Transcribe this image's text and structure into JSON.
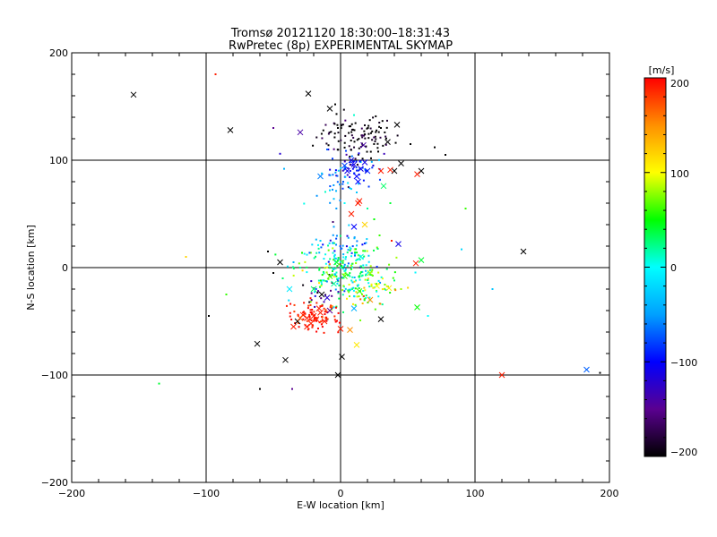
{
  "chart_data": {
    "type": "scatter",
    "title": "Tromsø 20121120 18:30:00–18:31:43",
    "subtitle": "RwPretec (8p) EXPERIMENTAL SKYMAP",
    "xlabel": "E-W location [km]",
    "ylabel": "N-S location [km]",
    "xlim": [
      -200,
      200
    ],
    "ylim": [
      -200,
      200
    ],
    "xticks": [
      "−200",
      "−100",
      "0",
      "100",
      "200"
    ],
    "yticks": [
      "−200",
      "−100",
      "0",
      "100",
      "200"
    ],
    "grid": true,
    "colorbar": {
      "label": "[m/s]",
      "range": [
        -200,
        200
      ],
      "ticks": [
        "200",
        "100",
        "0",
        "−100",
        "−200"
      ],
      "colors": [
        "#000000",
        "#5a0090",
        "#0000ff",
        "#00a0ff",
        "#00ffff",
        "#00ff00",
        "#ffff00",
        "#ff9000",
        "#ff0000"
      ]
    },
    "crosses": [
      {
        "x": -154,
        "y": 161,
        "v": -200
      },
      {
        "x": -24,
        "y": 162,
        "v": -200
      },
      {
        "x": -8,
        "y": 148,
        "v": -200
      },
      {
        "x": -82,
        "y": 128,
        "v": -200
      },
      {
        "x": -30,
        "y": 126,
        "v": -140
      },
      {
        "x": 42,
        "y": 133,
        "v": -200
      },
      {
        "x": 35,
        "y": 117,
        "v": -200
      },
      {
        "x": 17,
        "y": 114,
        "v": -140
      },
      {
        "x": 60,
        "y": 90,
        "v": -200
      },
      {
        "x": 45,
        "y": 97,
        "v": -200
      },
      {
        "x": 40,
        "y": 90,
        "v": -200
      },
      {
        "x": 8,
        "y": 100,
        "v": -110
      },
      {
        "x": 10,
        "y": 96,
        "v": -110
      },
      {
        "x": 15,
        "y": 92,
        "v": -110
      },
      {
        "x": 5,
        "y": 90,
        "v": -110
      },
      {
        "x": 12,
        "y": 85,
        "v": -100
      },
      {
        "x": 18,
        "y": 98,
        "v": -110
      },
      {
        "x": 13,
        "y": 80,
        "v": -100
      },
      {
        "x": -15,
        "y": 85,
        "v": -60
      },
      {
        "x": 3,
        "y": 95,
        "v": -80
      },
      {
        "x": 20,
        "y": 90,
        "v": -90
      },
      {
        "x": 30,
        "y": 90,
        "v": 190
      },
      {
        "x": 57,
        "y": 87,
        "v": 190
      },
      {
        "x": 37,
        "y": 91,
        "v": 190
      },
      {
        "x": 32,
        "y": 76,
        "v": 30
      },
      {
        "x": 14,
        "y": 62,
        "v": 190
      },
      {
        "x": 13,
        "y": 60,
        "v": 190
      },
      {
        "x": 8,
        "y": 50,
        "v": 190
      },
      {
        "x": 18,
        "y": 40,
        "v": 120
      },
      {
        "x": 10,
        "y": 38,
        "v": -100
      },
      {
        "x": 43,
        "y": 22,
        "v": -110
      },
      {
        "x": 60,
        "y": 7,
        "v": 40
      },
      {
        "x": 56,
        "y": 4,
        "v": 190
      },
      {
        "x": -45,
        "y": 5,
        "v": -200
      },
      {
        "x": 136,
        "y": 15,
        "v": -200
      },
      {
        "x": 27,
        "y": -17,
        "v": 100
      },
      {
        "x": 36,
        "y": -19,
        "v": 110
      },
      {
        "x": -38,
        "y": -20,
        "v": -10
      },
      {
        "x": -14,
        "y": -25,
        "v": -200
      },
      {
        "x": -10,
        "y": -28,
        "v": -120
      },
      {
        "x": 14,
        "y": -22,
        "v": 60
      },
      {
        "x": -5,
        "y": -15,
        "v": 20
      },
      {
        "x": 22,
        "y": -30,
        "v": 150
      },
      {
        "x": -8,
        "y": -40,
        "v": -150
      },
      {
        "x": 10,
        "y": -38,
        "v": -40
      },
      {
        "x": 57,
        "y": -37,
        "v": 50
      },
      {
        "x": 30,
        "y": -48,
        "v": -200
      },
      {
        "x": -32,
        "y": -50,
        "v": -200
      },
      {
        "x": -25,
        "y": -47,
        "v": 190
      },
      {
        "x": -20,
        "y": -45,
        "v": 190
      },
      {
        "x": -18,
        "y": -48,
        "v": 190
      },
      {
        "x": -15,
        "y": -42,
        "v": 190
      },
      {
        "x": -22,
        "y": -52,
        "v": 190
      },
      {
        "x": -28,
        "y": -44,
        "v": 190
      },
      {
        "x": -12,
        "y": -50,
        "v": 190
      },
      {
        "x": -25,
        "y": -55,
        "v": 190
      },
      {
        "x": -35,
        "y": -55,
        "v": 190
      },
      {
        "x": -16,
        "y": -38,
        "v": 190
      },
      {
        "x": -30,
        "y": -47,
        "v": 170
      },
      {
        "x": 0,
        "y": -57,
        "v": 190
      },
      {
        "x": 7,
        "y": -58,
        "v": 150
      },
      {
        "x": 12,
        "y": -72,
        "v": 110
      },
      {
        "x": -62,
        "y": -71,
        "v": -200
      },
      {
        "x": -41,
        "y": -86,
        "v": -200
      },
      {
        "x": 1,
        "y": -83,
        "v": -200
      },
      {
        "x": -2,
        "y": -100,
        "v": -200
      },
      {
        "x": 120,
        "y": -100,
        "v": 190
      },
      {
        "x": 183,
        "y": -95,
        "v": -70
      },
      {
        "x": -20,
        "y": -20,
        "v": 30
      },
      {
        "x": 3,
        "y": -8,
        "v": 60
      },
      {
        "x": -3,
        "y": 5,
        "v": 40
      },
      {
        "x": 15,
        "y": 10,
        "v": 10
      },
      {
        "x": 22,
        "y": -5,
        "v": 80
      },
      {
        "x": -8,
        "y": -8,
        "v": 70
      }
    ],
    "dots": [
      {
        "x": -93,
        "y": 180,
        "v": 190
      },
      {
        "x": -4,
        "y": 152,
        "v": -200
      },
      {
        "x": -3,
        "y": 143,
        "v": -200
      },
      {
        "x": 10,
        "y": 142,
        "v": 10
      },
      {
        "x": 30,
        "y": 130,
        "v": -200
      },
      {
        "x": -50,
        "y": 130,
        "v": -150
      },
      {
        "x": -45,
        "y": 106,
        "v": -120
      },
      {
        "x": -10,
        "y": 110,
        "v": -70
      },
      {
        "x": -42,
        "y": 92,
        "v": -40
      },
      {
        "x": 70,
        "y": 112,
        "v": -200
      },
      {
        "x": 78,
        "y": 105,
        "v": -200
      },
      {
        "x": 52,
        "y": 115,
        "v": -200
      },
      {
        "x": 28,
        "y": 108,
        "v": -200
      },
      {
        "x": 2,
        "y": 80,
        "v": -70
      },
      {
        "x": -8,
        "y": 72,
        "v": -20
      },
      {
        "x": -5,
        "y": 64,
        "v": -30
      },
      {
        "x": 3,
        "y": 60,
        "v": 0
      },
      {
        "x": 12,
        "y": 70,
        "v": -30
      },
      {
        "x": 20,
        "y": 55,
        "v": 20
      },
      {
        "x": 25,
        "y": 45,
        "v": 50
      },
      {
        "x": 37,
        "y": 60,
        "v": 40
      },
      {
        "x": 93,
        "y": 55,
        "v": 60
      },
      {
        "x": -5,
        "y": 38,
        "v": -50
      },
      {
        "x": -15,
        "y": 25,
        "v": -30
      },
      {
        "x": -25,
        "y": 12,
        "v": -10
      },
      {
        "x": 38,
        "y": 25,
        "v": 190
      },
      {
        "x": 29,
        "y": 30,
        "v": 60
      },
      {
        "x": -54,
        "y": 15,
        "v": -200
      },
      {
        "x": -115,
        "y": 10,
        "v": 120
      },
      {
        "x": 90,
        "y": 17,
        "v": -20
      },
      {
        "x": -50,
        "y": -5,
        "v": -200
      },
      {
        "x": -43,
        "y": -10,
        "v": 30
      },
      {
        "x": -35,
        "y": 5,
        "v": -40
      },
      {
        "x": -30,
        "y": 0,
        "v": 20
      },
      {
        "x": -85,
        "y": -25,
        "v": 60
      },
      {
        "x": -98,
        "y": -45,
        "v": -200
      },
      {
        "x": -60,
        "y": -113,
        "v": -200
      },
      {
        "x": -36,
        "y": -113,
        "v": -150
      },
      {
        "x": -135,
        "y": -108,
        "v": 40
      },
      {
        "x": 113,
        "y": -20,
        "v": -30
      },
      {
        "x": 193,
        "y": -98,
        "v": -200
      },
      {
        "x": 65,
        "y": -45,
        "v": 0
      },
      {
        "x": 45,
        "y": -20,
        "v": 80
      },
      {
        "x": 40,
        "y": -12,
        "v": 30
      }
    ],
    "clusters": [
      {
        "x": 12,
        "y": 122,
        "sx": 15,
        "sy": 10,
        "v": -200,
        "dv": 20,
        "n": 110
      },
      {
        "x": 12,
        "y": 92,
        "sx": 10,
        "sy": 8,
        "v": -100,
        "dv": 25,
        "n": 55
      },
      {
        "x": 0,
        "y": 75,
        "sx": 8,
        "sy": 10,
        "v": -40,
        "dv": 30,
        "n": 25
      },
      {
        "x": 0,
        "y": 20,
        "sx": 10,
        "sy": 10,
        "v": -60,
        "dv": 40,
        "n": 45
      },
      {
        "x": 0,
        "y": 0,
        "sx": 17,
        "sy": 12,
        "v": 20,
        "dv": 45,
        "n": 190
      },
      {
        "x": 15,
        "y": -20,
        "sx": 15,
        "sy": 10,
        "v": 60,
        "dv": 50,
        "n": 80
      },
      {
        "x": -20,
        "y": -45,
        "sx": 9,
        "sy": 7,
        "v": 190,
        "dv": 10,
        "n": 85
      },
      {
        "x": -15,
        "y": -25,
        "sx": 8,
        "sy": 8,
        "v": -150,
        "dv": 40,
        "n": 18
      }
    ]
  }
}
